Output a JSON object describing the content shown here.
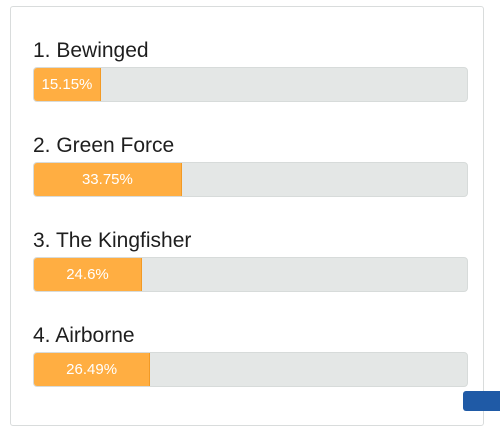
{
  "poll": {
    "options": [
      {
        "label": "1. Bewinged",
        "percent_label": "15.15%",
        "fraction": 0.1515
      },
      {
        "label": "2. Green Force",
        "percent_label": "33.75%",
        "fraction": 0.3375
      },
      {
        "label": "3. The Kingfisher",
        "percent_label": "24.6%",
        "fraction": 0.246
      },
      {
        "label": "4. Airborne",
        "percent_label": "26.49%",
        "fraction": 0.2649
      }
    ]
  },
  "colors": {
    "bar_fill": "#ffae42",
    "bar_track": "#e4e7e6",
    "corner_button": "#1f5aa6"
  }
}
